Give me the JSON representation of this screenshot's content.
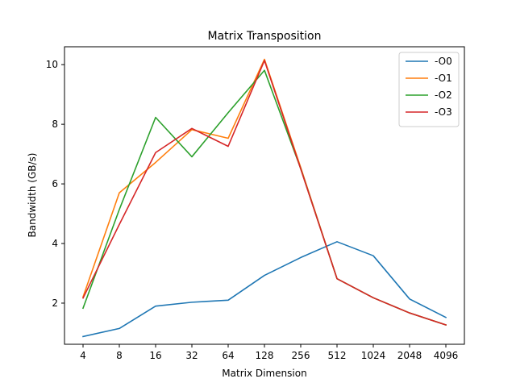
{
  "chart_data": {
    "type": "line",
    "title": "Matrix Transposition",
    "xlabel": "Matrix Dimension",
    "ylabel": "Bandwidth (GB/s)",
    "categories": [
      "4",
      "8",
      "16",
      "32",
      "64",
      "128",
      "256",
      "512",
      "1024",
      "2048",
      "4096"
    ],
    "ylim": [
      0.62,
      10.6
    ],
    "yticks": [
      2,
      4,
      6,
      8,
      10
    ],
    "legend_position": "top-right",
    "grid": false,
    "series": [
      {
        "name": "-O0",
        "color": "#1f77b4",
        "values": [
          0.88,
          1.15,
          1.9,
          2.03,
          2.1,
          2.93,
          3.53,
          4.06,
          3.59,
          2.14,
          1.52
        ]
      },
      {
        "name": "-O1",
        "color": "#ff7f0e",
        "values": [
          2.21,
          5.7,
          6.72,
          7.82,
          7.53,
          10.18,
          6.55,
          2.82,
          2.18,
          1.67,
          1.27
        ]
      },
      {
        "name": "-O2",
        "color": "#2ca02c",
        "values": [
          1.83,
          5.14,
          8.23,
          6.91,
          8.39,
          9.81,
          6.51,
          2.82,
          2.18,
          1.67,
          1.27
        ]
      },
      {
        "name": "-O3",
        "color": "#d62728",
        "values": [
          2.17,
          4.64,
          7.05,
          7.86,
          7.26,
          10.14,
          6.5,
          2.82,
          2.18,
          1.67,
          1.27
        ]
      }
    ]
  }
}
